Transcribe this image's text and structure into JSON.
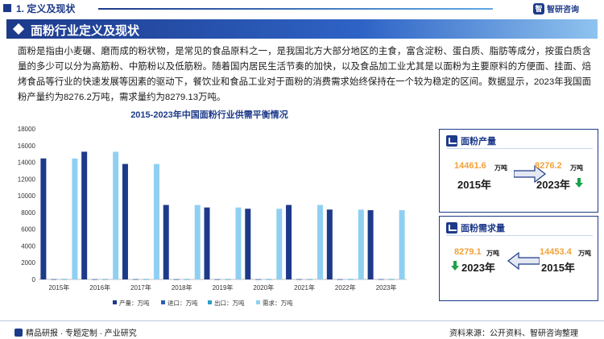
{
  "header": {
    "section": "1. 定义及现状",
    "logo_mark": "智",
    "logo_text": "智研咨询"
  },
  "banner": {
    "title": "面粉行业定义及现状"
  },
  "intro": "面粉是指由小麦碾、磨而成的粉状物，是常见的食品原料之一，是我国北方大部分地区的主食，富含淀粉、蛋白质、脂肪等成分，按蛋白质含量的多少可以分为高筋粉、中筋粉以及低筋粉。随着国内居民生活节奏的加快，以及食品加工业尤其是以面粉为主要原料的方便面、挂面、焙烤食品等行业的快速发展等因素的驱动下，餐饮业和食品工业对于面粉的消费需求始终保持在一个较为稳定的区间。数据显示，2023年我国面粉产量约为8276.2万吨，需求量约为8279.13万吨。",
  "chart_data": {
    "type": "bar",
    "title": "2015-2023年中国面粉行业供需平衡情况",
    "categories": [
      "2015年",
      "2016年",
      "2017年",
      "2018年",
      "2019年",
      "2020年",
      "2021年",
      "2022年",
      "2023年"
    ],
    "series": [
      {
        "name": "产量：万吨",
        "color": "#1d3a8a",
        "values": [
          14461.6,
          15265.0,
          13801.0,
          8900.0,
          8600.0,
          8450.0,
          8900.0,
          8350.0,
          8276.2
        ]
      },
      {
        "name": "进口：万吨",
        "color": "#2e5fae",
        "values": [
          30,
          25,
          30,
          25,
          25,
          25,
          30,
          25,
          30
        ]
      },
      {
        "name": "出口：万吨",
        "color": "#2d9fc9",
        "values": [
          35,
          30,
          35,
          30,
          30,
          30,
          30,
          30,
          30
        ]
      },
      {
        "name": "需求：万吨",
        "color": "#8fd0f2",
        "values": [
          14453.4,
          15260.0,
          13795.0,
          8895.0,
          8595.0,
          8445.0,
          8900.0,
          8345.0,
          8279.1
        ]
      }
    ],
    "yticks": [
      0,
      2000,
      4000,
      6000,
      8000,
      10000,
      12000,
      14000,
      16000,
      18000
    ],
    "ylim": [
      0,
      18000
    ],
    "legend": "bottom",
    "grid": false
  },
  "cards": {
    "production": {
      "label": "面粉产量",
      "left_value": "14461.6",
      "left_unit": "万吨",
      "left_year": "2015年",
      "right_value": "8276.2",
      "right_unit": "万吨",
      "right_year": "2023年"
    },
    "demand": {
      "label": "面粉需求量",
      "left_value": "8279.1",
      "left_unit": "万吨",
      "left_year": "2023年",
      "right_value": "14453.4",
      "right_unit": "万吨",
      "right_year": "2015年"
    }
  },
  "footer": {
    "left": "精品研报 · 专题定制 · 产业研究",
    "right": "资料来源：公开资料、智研咨询整理"
  }
}
